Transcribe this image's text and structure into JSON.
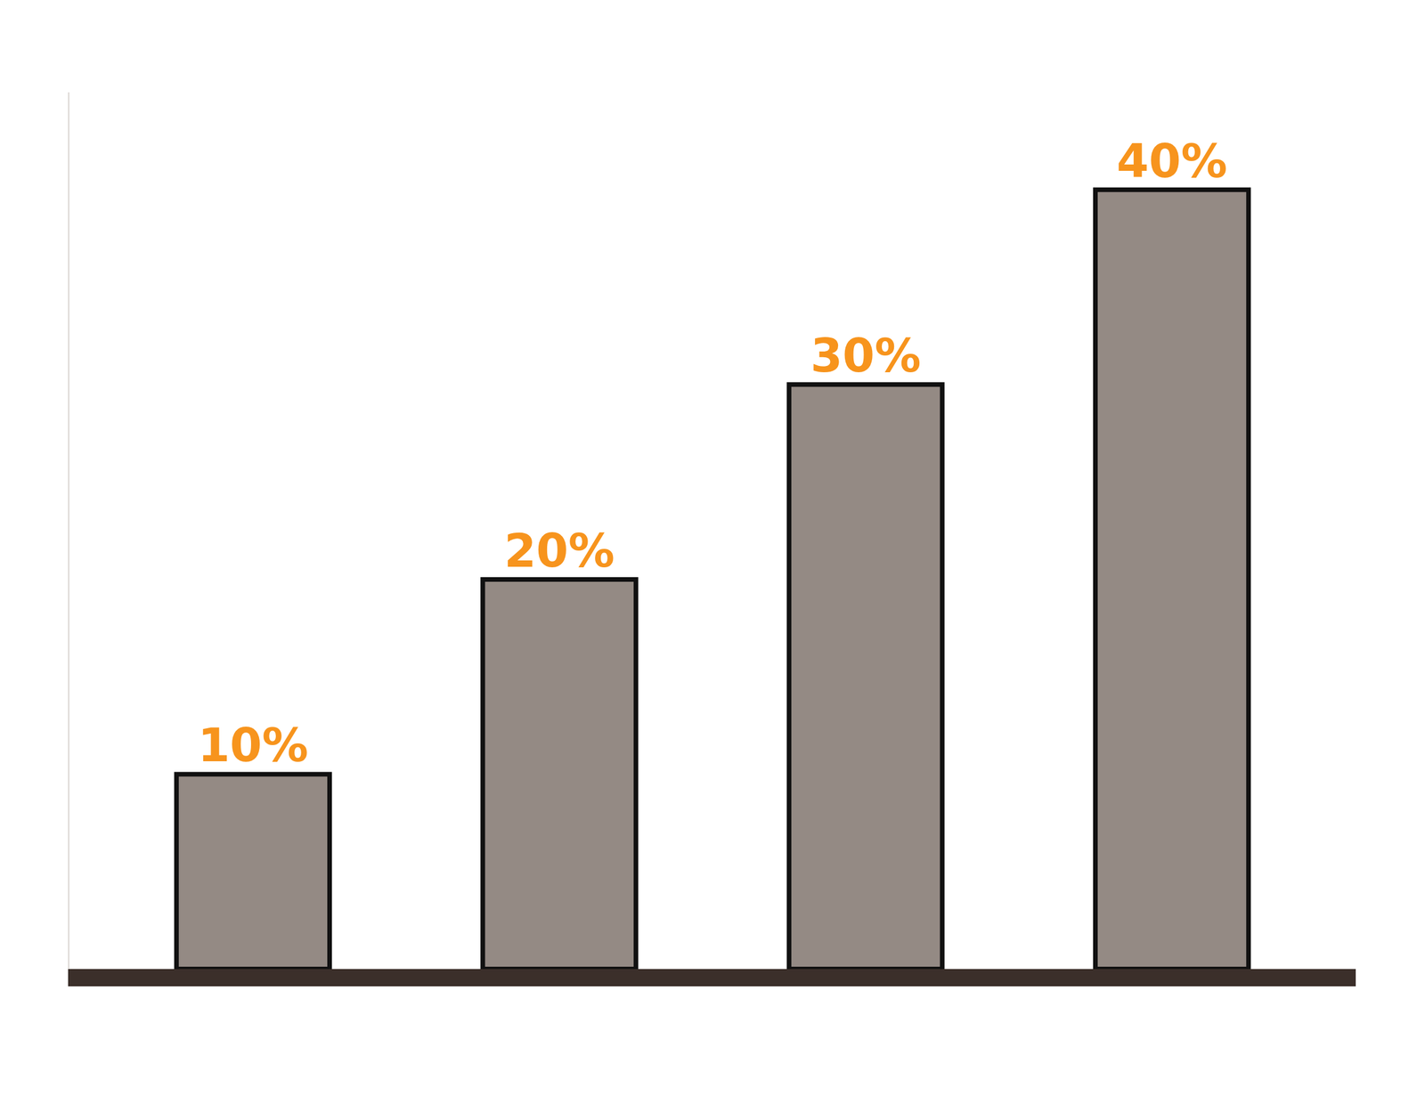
{
  "chart_data": {
    "type": "bar",
    "categories": [
      null,
      null,
      null,
      null
    ],
    "values": [
      10,
      20,
      30,
      40
    ],
    "value_labels": [
      "10%",
      "20%",
      "30%",
      "40%"
    ],
    "data_labels": true,
    "tick_labels": false,
    "color": "#948a84",
    "ylim": [
      0,
      45
    ],
    "yticks": [],
    "grid": false
  }
}
